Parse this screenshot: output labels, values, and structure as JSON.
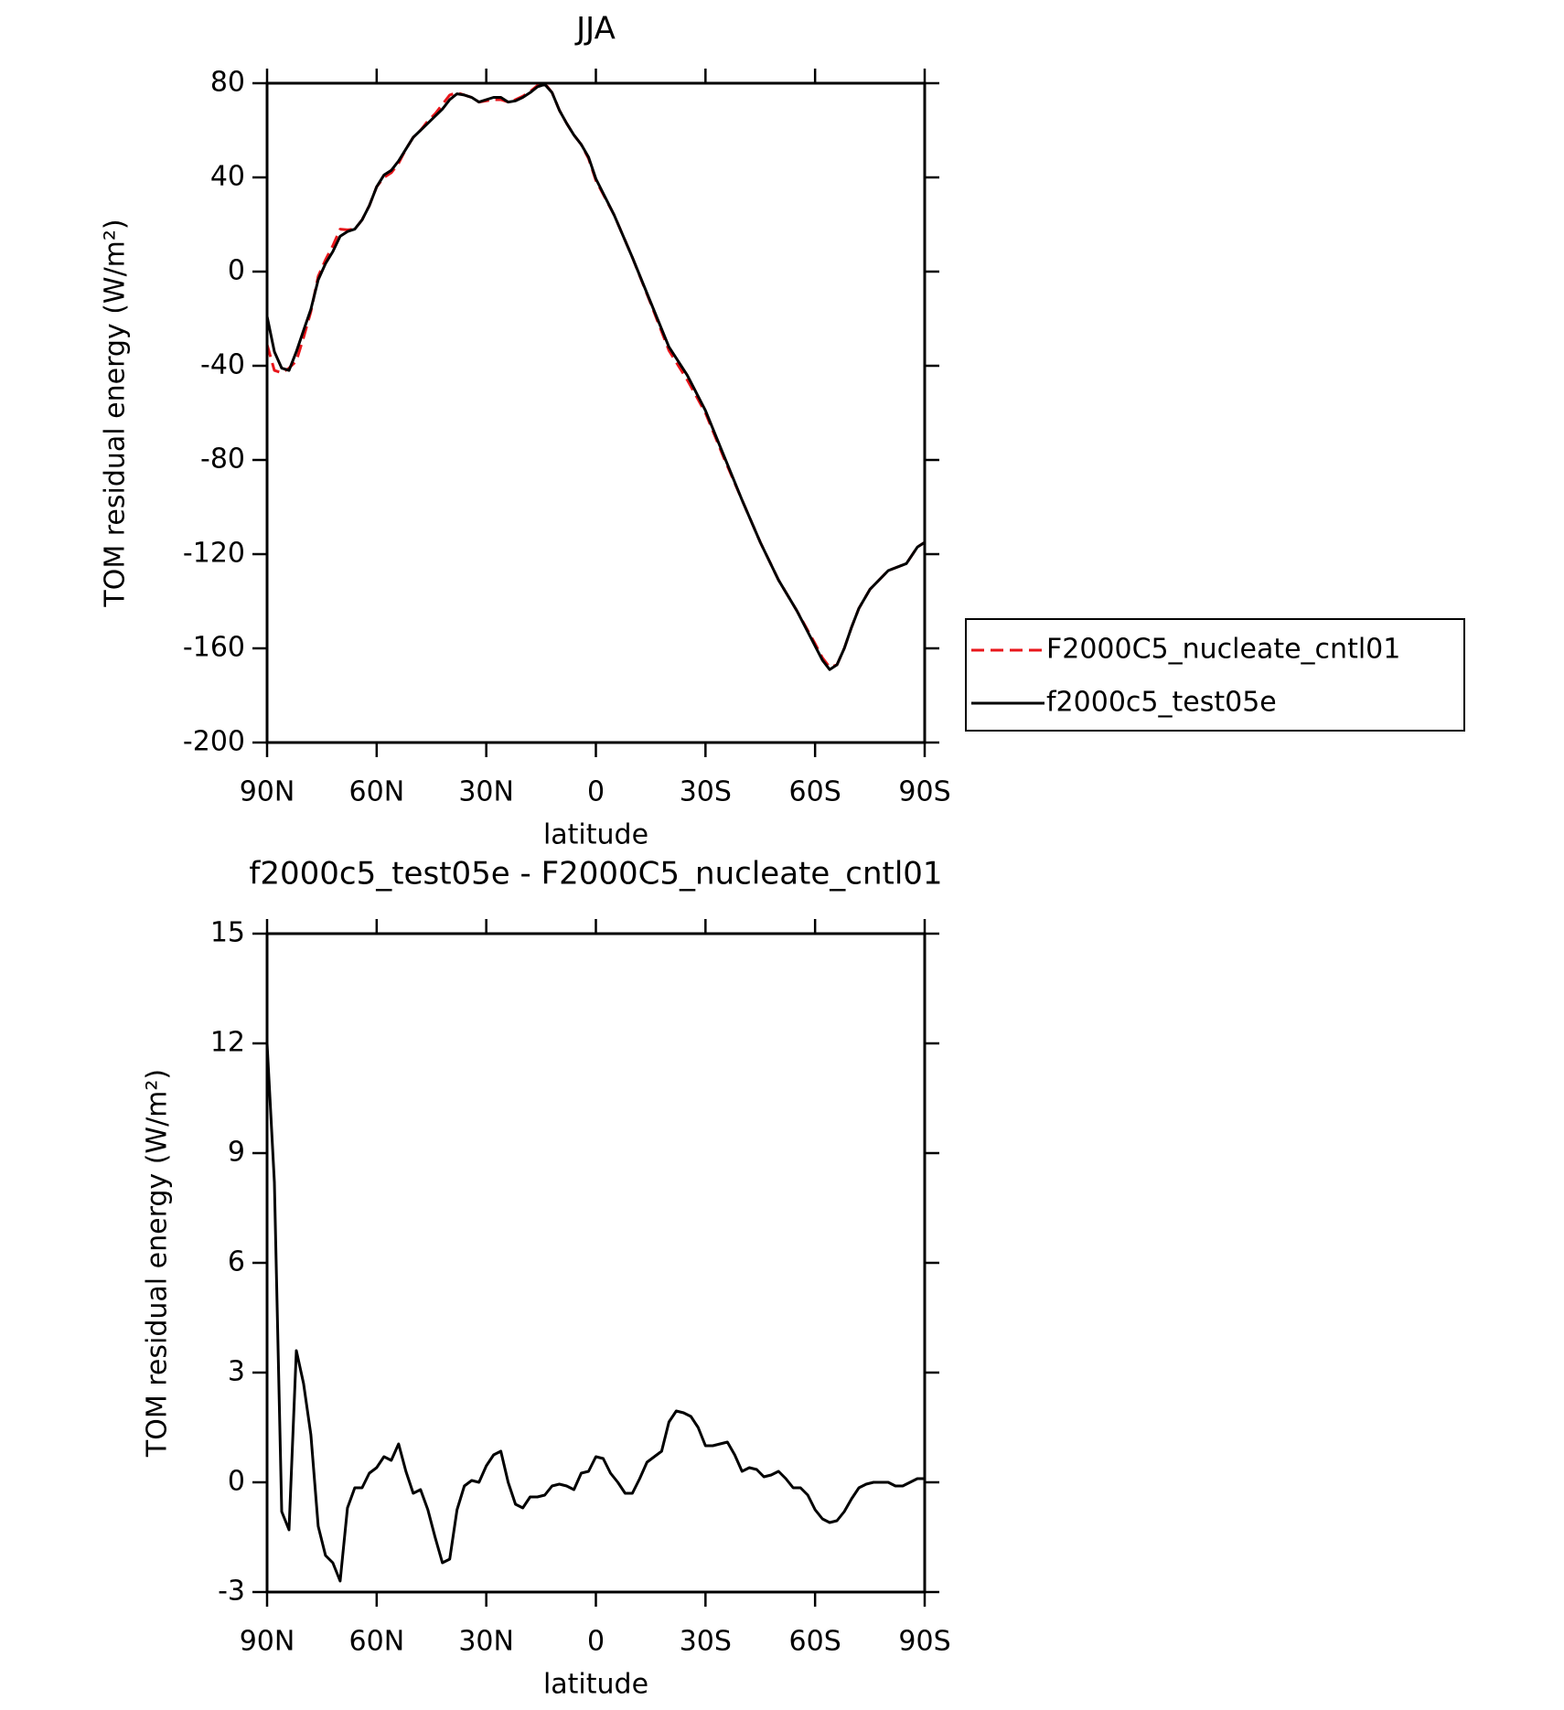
{
  "chart_data": [
    {
      "type": "line",
      "title": "JJA",
      "xlabel": "latitude",
      "ylabel": "TOM residual energy (W/m²)",
      "x": [
        90,
        88,
        86,
        84,
        82,
        80,
        78,
        76,
        74,
        72,
        70,
        68,
        66,
        64,
        62,
        60,
        58,
        56,
        54,
        52,
        50,
        48,
        46,
        44,
        42,
        40,
        38,
        36,
        34,
        32,
        30,
        28,
        26,
        24,
        22,
        20,
        18,
        16,
        14,
        12,
        10,
        8,
        6,
        4,
        2,
        0,
        -5,
        -10,
        -15,
        -20,
        -25,
        -30,
        -35,
        -40,
        -45,
        -50,
        -55,
        -60,
        -62,
        -64,
        -66,
        -68,
        -70,
        -72,
        -75,
        -80,
        -85,
        -88,
        -90
      ],
      "series": [
        {
          "name": "F2000C5_nucleate_cntl01",
          "color": "#e8161b",
          "dashed": true,
          "values": [
            -31,
            -42,
            -43,
            -41,
            -38,
            -28,
            -17,
            -2,
            5,
            11,
            18,
            17.7,
            18,
            22,
            28,
            36,
            40,
            42,
            46,
            52,
            57,
            60,
            64,
            67,
            71,
            75,
            76,
            75,
            74,
            72,
            72.5,
            73,
            73,
            72,
            73,
            74.5,
            76.5,
            79,
            80,
            76,
            68.5,
            63,
            58,
            54,
            48,
            38.7,
            24,
            6,
            -13.5,
            -33.5,
            -46,
            -60,
            -79,
            -97,
            -115,
            -131,
            -144,
            -158,
            -164,
            -168,
            -167,
            -160,
            -151,
            -143,
            -135,
            -127,
            -124,
            -117,
            -115
          ]
        },
        {
          "name": "f2000c5_test05e",
          "color": "#000000",
          "dashed": false,
          "values": [
            -19,
            -34,
            -41,
            -42,
            -34,
            -25,
            -16,
            -3.5,
            3.4,
            8.5,
            15,
            17,
            18,
            22,
            28,
            36,
            41,
            43,
            47,
            52,
            57,
            60,
            63,
            66,
            69,
            73,
            75.5,
            75,
            74,
            72,
            73,
            74,
            74,
            72,
            72.5,
            74,
            76,
            78.5,
            79.5,
            76,
            68.5,
            63,
            58,
            54,
            48.6,
            39.4,
            24,
            6,
            -13,
            -32,
            -44,
            -59,
            -78,
            -97,
            -115,
            -131,
            -144,
            -159,
            -165,
            -169,
            -167,
            -160,
            -151,
            -143,
            -135,
            -127,
            -124,
            -117,
            -115
          ]
        }
      ],
      "xlim": [
        90,
        -90
      ],
      "xticks": [
        {
          "value": 90,
          "label": "90N"
        },
        {
          "value": 60,
          "label": "60N"
        },
        {
          "value": 30,
          "label": "30N"
        },
        0,
        {
          "value": -30,
          "label": "30S"
        },
        {
          "value": -60,
          "label": "60S"
        },
        {
          "value": -90,
          "label": "90S"
        }
      ],
      "ylim": [
        -200,
        80
      ],
      "yticks": [
        -200,
        -160,
        -120,
        -80,
        -40,
        0,
        40,
        80
      ],
      "legend": "right"
    },
    {
      "type": "line",
      "title": "f2000c5_test05e - F2000C5_nucleate_cntl01",
      "xlabel": "latitude",
      "ylabel": "TOM residual energy (W/m²)",
      "x": [
        90,
        88,
        86,
        84,
        82,
        80,
        78,
        76,
        74,
        72,
        70,
        68,
        66,
        64,
        62,
        60,
        58,
        56,
        54,
        52,
        50,
        48,
        46,
        44,
        42,
        40,
        38,
        36,
        34,
        32,
        30,
        28,
        26,
        24,
        22,
        20,
        18,
        16,
        14,
        12,
        10,
        8,
        6,
        4,
        2,
        0,
        -2,
        -4,
        -6,
        -8,
        -10,
        -12,
        -14,
        -16,
        -18,
        -20,
        -22,
        -24,
        -26,
        -28,
        -30,
        -32,
        -34,
        -36,
        -38,
        -40,
        -42,
        -44,
        -46,
        -48,
        -50,
        -52,
        -54,
        -56,
        -58,
        -60,
        -62,
        -64,
        -66,
        -68,
        -70,
        -72,
        -74,
        -76,
        -78,
        -80,
        -82,
        -84,
        -86,
        -88,
        -90
      ],
      "series": [
        {
          "color": "#000000",
          "dashed": false,
          "values": [
            12,
            8.2,
            -0.8,
            -1.3,
            3.6,
            2.7,
            1.3,
            -1.2,
            -2,
            -2.2,
            -2.7,
            -0.7,
            -0.15,
            -0.15,
            0.25,
            0.4,
            0.7,
            0.6,
            1.05,
            0.3,
            -0.3,
            -0.2,
            -0.75,
            -1.5,
            -2.2,
            -2.1,
            -0.75,
            -0.1,
            0.05,
            0,
            0.45,
            0.75,
            0.85,
            0,
            -0.6,
            -0.7,
            -0.4,
            -0.4,
            -0.35,
            -0.1,
            -0.05,
            -0.1,
            -0.2,
            0.25,
            0.3,
            0.7,
            0.65,
            0.25,
            0,
            -0.3,
            -0.3,
            0.1,
            0.55,
            0.7,
            0.85,
            1.65,
            1.95,
            1.9,
            1.8,
            1.5,
            1,
            1,
            1.05,
            1.1,
            0.75,
            0.3,
            0.4,
            0.35,
            0.15,
            0.2,
            0.3,
            0.1,
            -0.15,
            -0.15,
            -0.35,
            -0.75,
            -1,
            -1.1,
            -1.05,
            -0.8,
            -0.45,
            -0.15,
            -0.05,
            0,
            0,
            0,
            -0.1,
            -0.1,
            0,
            0.1,
            0.1
          ]
        }
      ],
      "xlim": [
        90,
        -90
      ],
      "xticks": [
        {
          "value": 90,
          "label": "90N"
        },
        {
          "value": 60,
          "label": "60N"
        },
        {
          "value": 30,
          "label": "30N"
        },
        0,
        {
          "value": -30,
          "label": "30S"
        },
        {
          "value": -60,
          "label": "60S"
        },
        {
          "value": -90,
          "label": "90S"
        }
      ],
      "ylim": [
        -3,
        15
      ],
      "yticks": [
        -3,
        0,
        3,
        6,
        9,
        12,
        15
      ]
    }
  ]
}
